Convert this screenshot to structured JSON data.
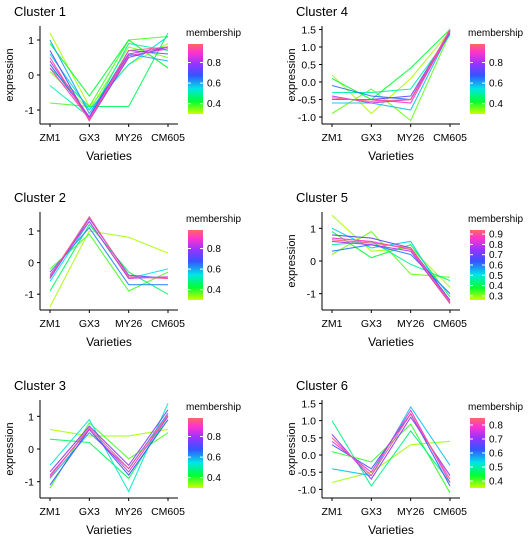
{
  "chart_data": [
    {
      "type": "line",
      "title": "Cluster 1",
      "xlabel": "Varieties",
      "ylabel": "expression",
      "categories": [
        "ZM1",
        "GX3",
        "MY26",
        "CM605"
      ],
      "ylim": [
        -1.4,
        1.4
      ],
      "yticks": [
        -1,
        0,
        1
      ],
      "legend": {
        "title": "membership",
        "ticks": [
          0.4,
          0.6,
          0.8
        ],
        "range": [
          0.3,
          0.98
        ]
      },
      "series": [
        {
          "values": [
            1.2,
            -0.9,
            0.3,
            0.9
          ],
          "membership": 0.32
        },
        {
          "values": [
            0.1,
            -1.0,
            0.8,
            0.5
          ],
          "membership": 0.35
        },
        {
          "values": [
            -0.8,
            -0.9,
            1.0,
            1.1
          ],
          "membership": 0.38
        },
        {
          "values": [
            0.9,
            -0.6,
            1.0,
            0.2
          ],
          "membership": 0.42
        },
        {
          "values": [
            0.2,
            -0.9,
            -0.9,
            1.2
          ],
          "membership": 0.45
        },
        {
          "values": [
            -0.3,
            -1.2,
            0.9,
            0.7
          ],
          "membership": 0.5
        },
        {
          "values": [
            0.6,
            -1.0,
            0.3,
            1.1
          ],
          "membership": 0.55
        },
        {
          "values": [
            1.0,
            -1.1,
            0.6,
            0.4
          ],
          "membership": 0.6
        },
        {
          "values": [
            0.3,
            -1.2,
            0.7,
            0.6
          ],
          "membership": 0.66
        },
        {
          "values": [
            0.7,
            -1.3,
            0.5,
            0.8
          ],
          "membership": 0.72
        },
        {
          "values": [
            0.4,
            -1.2,
            0.6,
            0.8
          ],
          "membership": 0.82
        },
        {
          "values": [
            0.2,
            -1.25,
            0.55,
            0.75
          ],
          "membership": 0.9
        },
        {
          "values": [
            0.5,
            -1.3,
            0.7,
            0.8
          ],
          "membership": 0.95
        }
      ]
    },
    {
      "type": "line",
      "title": "Cluster 4",
      "xlabel": "Varieties",
      "ylabel": "expression",
      "categories": [
        "ZM1",
        "GX3",
        "MY26",
        "CM605"
      ],
      "ylim": [
        -1.2,
        1.6
      ],
      "yticks": [
        -1.0,
        -0.5,
        0.0,
        0.5,
        1.0,
        1.5
      ],
      "legend": {
        "title": "membership",
        "ticks": [
          0.4,
          0.6,
          0.8
        ],
        "range": [
          0.3,
          0.98
        ]
      },
      "series": [
        {
          "values": [
            0.2,
            -0.9,
            0.1,
            1.45
          ],
          "membership": 0.32
        },
        {
          "values": [
            -0.9,
            -0.2,
            -1.1,
            1.4
          ],
          "membership": 0.36
        },
        {
          "values": [
            0.1,
            -0.5,
            0.4,
            1.5
          ],
          "membership": 0.42
        },
        {
          "values": [
            -0.3,
            -0.3,
            -0.2,
            1.35
          ],
          "membership": 0.5
        },
        {
          "values": [
            -0.6,
            -0.6,
            -0.8,
            1.45
          ],
          "membership": 0.58
        },
        {
          "values": [
            -0.1,
            -0.4,
            -0.5,
            1.4
          ],
          "membership": 0.65
        },
        {
          "values": [
            -0.5,
            -0.5,
            -0.4,
            1.45
          ],
          "membership": 0.74
        },
        {
          "values": [
            -0.4,
            -0.6,
            -0.5,
            1.5
          ],
          "membership": 0.82
        },
        {
          "values": [
            -0.5,
            -0.5,
            -0.6,
            1.45
          ],
          "membership": 0.9
        },
        {
          "values": [
            -0.45,
            -0.55,
            -0.5,
            1.5
          ],
          "membership": 0.96
        }
      ]
    },
    {
      "type": "line",
      "title": "Cluster 2",
      "xlabel": "Varieties",
      "ylabel": "",
      "categories": [
        "ZM1",
        "GX3",
        "MY26",
        "CM605"
      ],
      "ylim": [
        -1.5,
        1.6
      ],
      "yticks": [
        -1,
        0,
        1
      ],
      "legend": {
        "title": "membership",
        "ticks": [
          0.4,
          0.6,
          0.8
        ],
        "range": [
          0.3,
          0.98
        ]
      },
      "series": [
        {
          "values": [
            -1.4,
            1.0,
            0.8,
            0.3
          ],
          "membership": 0.32
        },
        {
          "values": [
            -0.2,
            0.9,
            -0.9,
            -0.3
          ],
          "membership": 0.38
        },
        {
          "values": [
            -0.9,
            1.2,
            -0.3,
            -1.0
          ],
          "membership": 0.45
        },
        {
          "values": [
            -0.6,
            1.3,
            -0.5,
            -0.2
          ],
          "membership": 0.55
        },
        {
          "values": [
            -0.3,
            1.1,
            -0.7,
            -0.7
          ],
          "membership": 0.63
        },
        {
          "values": [
            -0.5,
            1.4,
            -0.4,
            -0.5
          ],
          "membership": 0.74
        },
        {
          "values": [
            -0.4,
            1.3,
            -0.5,
            -0.45
          ],
          "membership": 0.86
        },
        {
          "values": [
            -0.45,
            1.45,
            -0.45,
            -0.5
          ],
          "membership": 0.95
        }
      ]
    },
    {
      "type": "line",
      "title": "Cluster 5",
      "xlabel": "Varieties",
      "ylabel": "expression",
      "categories": [
        "ZM1",
        "GX3",
        "MY26",
        "CM605"
      ],
      "ylim": [
        -1.5,
        1.5
      ],
      "yticks": [
        -1,
        0,
        1
      ],
      "legend": {
        "title": "membership",
        "ticks": [
          0.3,
          0.4,
          0.5,
          0.6,
          0.7,
          0.8,
          0.9
        ],
        "range": [
          0.26,
          0.94
        ]
      },
      "series": [
        {
          "values": [
            1.4,
            0.3,
            0.4,
            -0.8
          ],
          "membership": 0.28
        },
        {
          "values": [
            0.2,
            0.9,
            -0.4,
            -0.5
          ],
          "membership": 0.32
        },
        {
          "values": [
            0.9,
            0.1,
            0.5,
            -1.1
          ],
          "membership": 0.38
        },
        {
          "values": [
            0.5,
            0.6,
            -0.1,
            -0.6
          ],
          "membership": 0.45
        },
        {
          "values": [
            1.0,
            0.4,
            0.6,
            -1.3
          ],
          "membership": 0.52
        },
        {
          "values": [
            0.3,
            0.5,
            0.2,
            -1.0
          ],
          "membership": 0.6
        },
        {
          "values": [
            0.8,
            0.7,
            0.4,
            -1.2
          ],
          "membership": 0.68
        },
        {
          "values": [
            0.6,
            0.5,
            0.3,
            -1.3
          ],
          "membership": 0.77
        },
        {
          "values": [
            0.7,
            0.6,
            0.35,
            -1.25
          ],
          "membership": 0.86
        },
        {
          "values": [
            0.65,
            0.55,
            0.4,
            -1.3
          ],
          "membership": 0.92
        }
      ]
    },
    {
      "type": "line",
      "title": "Cluster 3",
      "xlabel": "Varieties",
      "ylabel": "expression",
      "categories": [
        "ZM1",
        "GX3",
        "MY26",
        "CM605"
      ],
      "ylim": [
        -1.5,
        1.5
      ],
      "yticks": [
        -1,
        0,
        1
      ],
      "legend": {
        "title": "membership",
        "ticks": [
          0.4,
          0.6,
          0.8
        ],
        "range": [
          0.3,
          0.98
        ]
      },
      "series": [
        {
          "values": [
            0.6,
            0.4,
            0.4,
            0.6
          ],
          "membership": 0.32
        },
        {
          "values": [
            -1.2,
            0.8,
            -0.3,
            0.5
          ],
          "membership": 0.38
        },
        {
          "values": [
            0.3,
            0.2,
            -0.9,
            1.0
          ],
          "membership": 0.45
        },
        {
          "values": [
            -0.5,
            0.9,
            -1.3,
            1.4
          ],
          "membership": 0.53
        },
        {
          "values": [
            -0.9,
            0.5,
            -0.6,
            1.1
          ],
          "membership": 0.6
        },
        {
          "values": [
            -1.1,
            0.6,
            -0.8,
            0.9
          ],
          "membership": 0.68
        },
        {
          "values": [
            -0.7,
            0.7,
            -0.5,
            1.2
          ],
          "membership": 0.77
        },
        {
          "values": [
            -0.8,
            0.6,
            -0.7,
            1.0
          ],
          "membership": 0.86
        },
        {
          "values": [
            -0.85,
            0.65,
            -0.6,
            1.05
          ],
          "membership": 0.95
        }
      ]
    },
    {
      "type": "line",
      "title": "Cluster 6",
      "xlabel": "Varieties",
      "ylabel": "expression",
      "categories": [
        "ZM1",
        "GX3",
        "MY26",
        "CM605"
      ],
      "ylim": [
        -1.25,
        1.6
      ],
      "yticks": [
        -1.0,
        -0.5,
        0.0,
        0.5,
        1.0,
        1.5
      ],
      "legend": {
        "title": "membership",
        "ticks": [
          0.4,
          0.5,
          0.6,
          0.7,
          0.8
        ],
        "range": [
          0.35,
          0.85
        ]
      },
      "series": [
        {
          "values": [
            -0.8,
            -0.5,
            0.3,
            0.4
          ],
          "membership": 0.37
        },
        {
          "values": [
            0.1,
            -0.2,
            0.9,
            -1.1
          ],
          "membership": 0.42
        },
        {
          "values": [
            1.0,
            -0.9,
            0.7,
            -0.8
          ],
          "membership": 0.48
        },
        {
          "values": [
            -0.4,
            -0.6,
            1.4,
            -0.3
          ],
          "membership": 0.55
        },
        {
          "values": [
            0.3,
            -0.4,
            1.2,
            -0.9
          ],
          "membership": 0.62
        },
        {
          "values": [
            0.6,
            -0.7,
            1.1,
            -0.6
          ],
          "membership": 0.7
        },
        {
          "values": [
            0.4,
            -0.5,
            1.3,
            -0.8
          ],
          "membership": 0.77
        },
        {
          "values": [
            0.5,
            -0.6,
            1.2,
            -0.7
          ],
          "membership": 0.83
        }
      ]
    }
  ]
}
